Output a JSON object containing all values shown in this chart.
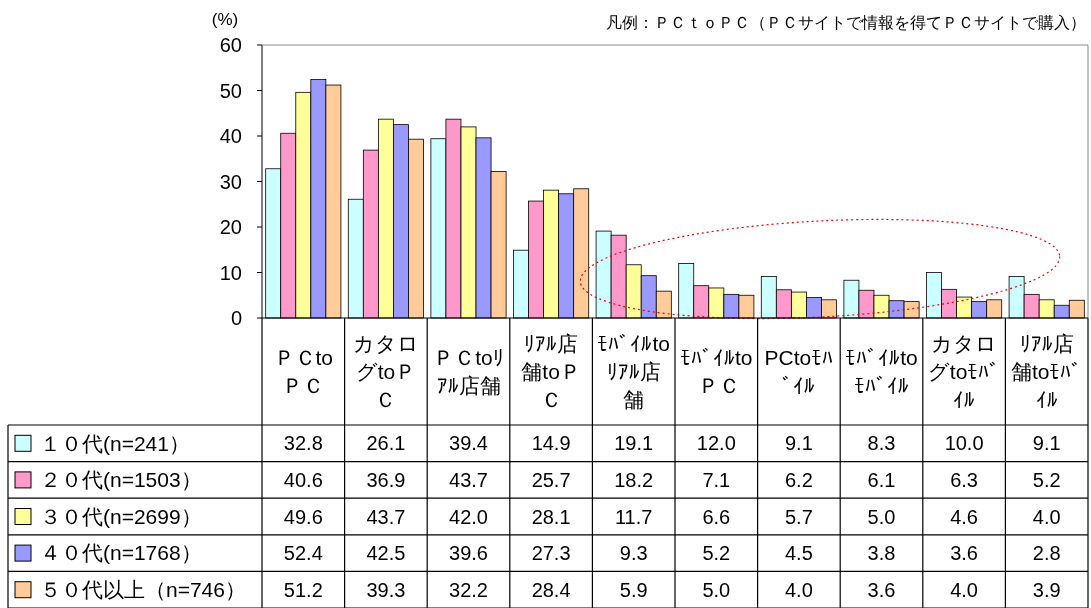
{
  "chart_data": {
    "type": "bar",
    "categories": [
      "ＰＣtoＰＣ",
      "カタログtoＰＣ",
      "ＰＣtoﾘｱﾙ店舗",
      "ﾘｱﾙ店舗toＰＣ",
      "ﾓﾊﾞｲﾙtoﾘｱﾙ店舗",
      "ﾓﾊﾞｲﾙto ＰＣ",
      "PCtoﾓﾊﾞｲﾙ",
      "ﾓﾊﾞｲﾙtoﾓﾊﾞｲﾙ",
      "カタログtoﾓﾊﾞｲﾙ",
      "ﾘｱﾙ店舗toﾓﾊﾞｲﾙ"
    ],
    "series": [
      {
        "name": "１０代(n=241）",
        "color": "#ccffff",
        "values": [
          32.8,
          26.1,
          39.4,
          14.9,
          19.1,
          12.0,
          9.1,
          8.3,
          10.0,
          9.1
        ],
        "value_labels": [
          "32.8",
          "26.1",
          "39.4",
          "14.9",
          "19.1",
          "12.0",
          "9.1",
          "8.3",
          "10.0",
          "9.1"
        ]
      },
      {
        "name": "２０代(n=1503）",
        "color": "#ff99cc",
        "values": [
          40.6,
          36.9,
          43.7,
          25.7,
          18.2,
          7.1,
          6.2,
          6.1,
          6.3,
          5.2
        ],
        "value_labels": [
          "40.6",
          "36.9",
          "43.7",
          "25.7",
          "18.2",
          "7.1",
          "6.2",
          "6.1",
          "6.3",
          "5.2"
        ]
      },
      {
        "name": "３０代(n=2699）",
        "color": "#ffff99",
        "values": [
          49.6,
          43.7,
          42.0,
          28.1,
          11.7,
          6.6,
          5.7,
          5.0,
          4.6,
          4.0
        ],
        "value_labels": [
          "49.6",
          "43.7",
          "42.0",
          "28.1",
          "11.7",
          "6.6",
          "5.7",
          "5.0",
          "4.6",
          "4.0"
        ]
      },
      {
        "name": "４０代(n=1768）",
        "color": "#9999ff",
        "values": [
          52.4,
          42.5,
          39.6,
          27.3,
          9.3,
          5.2,
          4.5,
          3.8,
          3.6,
          2.8
        ],
        "value_labels": [
          "52.4",
          "42.5",
          "39.6",
          "27.3",
          "9.3",
          "5.2",
          "4.5",
          "3.8",
          "3.6",
          "2.8"
        ]
      },
      {
        "name": "５０代以上（n=746）",
        "color": "#ffcc99",
        "values": [
          51.2,
          39.3,
          32.2,
          28.4,
          5.9,
          5.0,
          4.0,
          3.6,
          4.0,
          3.9
        ],
        "value_labels": [
          "51.2",
          "39.3",
          "32.2",
          "28.4",
          "5.9",
          "5.0",
          "4.0",
          "3.6",
          "4.0",
          "3.9"
        ]
      }
    ],
    "ylabel": "(%)",
    "ylim": [
      0,
      60
    ],
    "yticks": [
      0,
      10,
      20,
      30,
      40,
      50,
      60
    ],
    "legend": "bottom",
    "annotations": [
      "凡例：ＰＣｔｏＰＣ（ＰＣサイトで情報を得てＰＣサイトで購入）"
    ]
  }
}
